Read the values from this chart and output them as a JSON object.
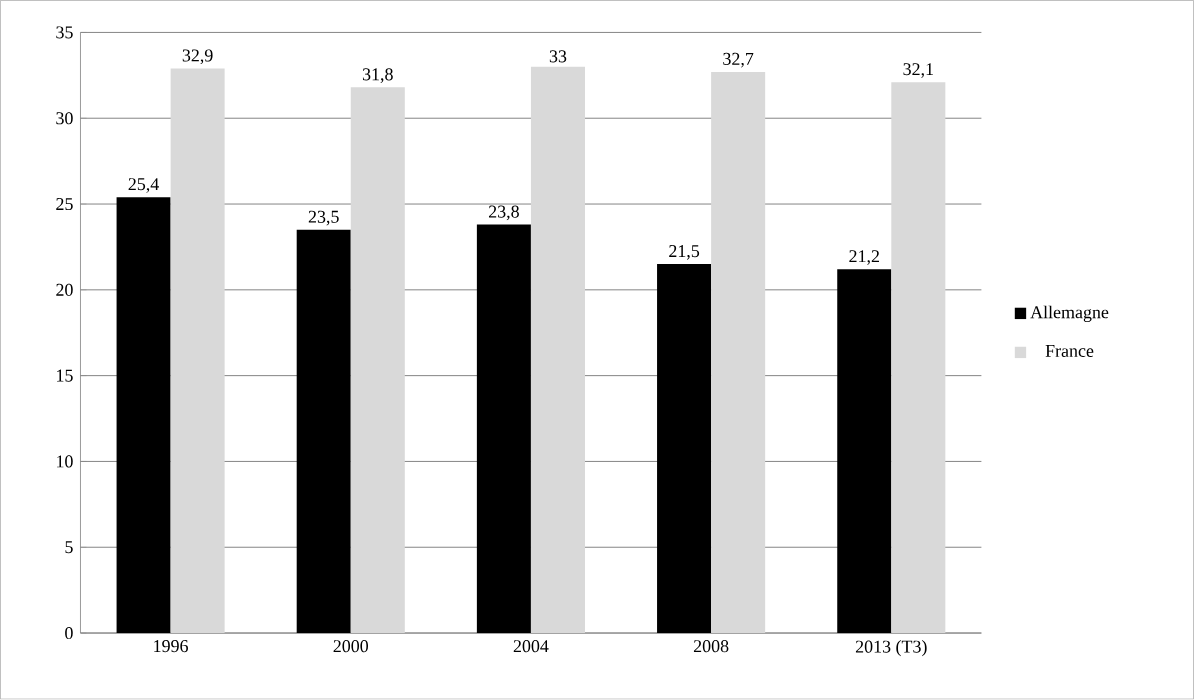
{
  "chart_data": {
    "type": "bar",
    "categories": [
      "1996",
      "2000",
      "2004",
      "2008",
      "2013 (T3)"
    ],
    "series": [
      {
        "name": "Allemagne",
        "color": "#000000",
        "values": [
          25.4,
          23.5,
          23.8,
          21.5,
          21.2
        ],
        "value_labels": [
          "25,4",
          "23,5",
          "23,8",
          "21,5",
          "21,2"
        ]
      },
      {
        "name": "France",
        "color": "#d9d9d9",
        "values": [
          32.9,
          31.8,
          33,
          32.7,
          32.1
        ],
        "value_labels": [
          "32,9",
          "31,8",
          "33",
          "32,7",
          "32,1"
        ]
      }
    ],
    "ylim": [
      0,
      35
    ],
    "yticks": [
      0,
      5,
      10,
      15,
      20,
      25,
      30,
      35
    ],
    "grid": "y",
    "legend": "right"
  }
}
